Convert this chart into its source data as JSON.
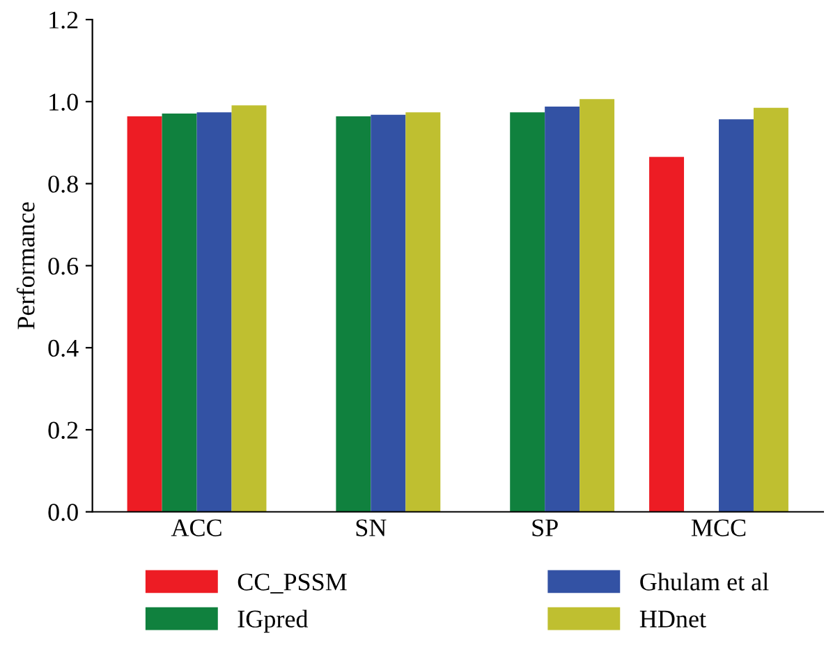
{
  "chart_data": {
    "type": "bar",
    "ylabel": "Performance",
    "categories": [
      "ACC",
      "SN",
      "SP",
      "MCC"
    ],
    "series": [
      {
        "name": "CC_PSSM",
        "color": "#ed1c24",
        "values": [
          0.964,
          null,
          null,
          0.865
        ]
      },
      {
        "name": "IGpred",
        "color": "#10813e",
        "values": [
          0.971,
          0.964,
          0.974,
          null
        ]
      },
      {
        "name": "Ghulam et al",
        "color": "#3352a4",
        "values": [
          0.974,
          0.968,
          0.988,
          0.957
        ]
      },
      {
        "name": "HDnet",
        "color": "#bfbf30",
        "values": [
          0.991,
          0.974,
          1.006,
          0.985
        ]
      }
    ],
    "ylim": [
      0,
      1.2
    ],
    "yticks": [
      {
        "value": 0,
        "label": "0.0"
      },
      0.2,
      0.4,
      0.6,
      0.8,
      {
        "value": 1,
        "label": "1.0"
      },
      1.2
    ],
    "grid": false,
    "legend": "bottom"
  }
}
